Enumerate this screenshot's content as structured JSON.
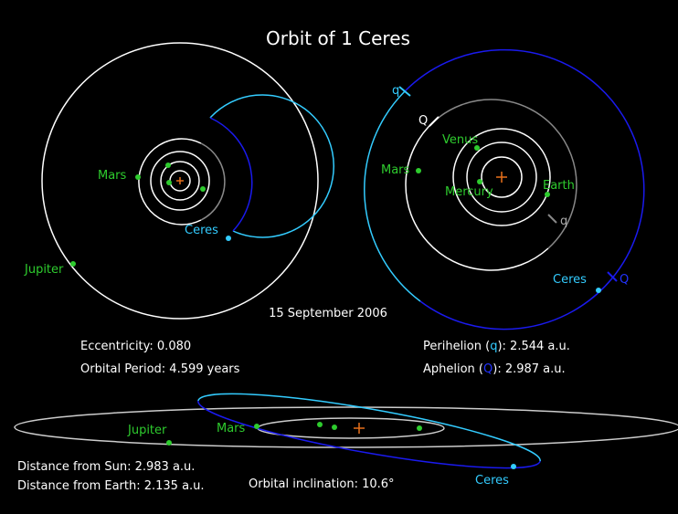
{
  "title": "Orbit of 1 Ceres",
  "outer_view": {
    "mars": "Mars",
    "ceres": "Ceres",
    "jupiter": "Jupiter"
  },
  "inner_view": {
    "q_ceres": "q",
    "q_mars": "Q",
    "venus": "Venus",
    "mars": "Mars",
    "mercury": "Mercury",
    "earth": "Earth",
    "q_mars_peri": "q",
    "ceres": "Ceres",
    "Q_ceres": "Q"
  },
  "date": "15 September 2006",
  "elements": {
    "eccentricity": "Eccentricity: 0.080",
    "period": "Orbital Period: 4.599 years",
    "perihelion": {
      "before": "Perihelion (",
      "symbol": "q",
      "after": "): 2.544 a.u."
    },
    "aphelion": {
      "before": "Aphelion (",
      "symbol": "Q",
      "after": "): 2.987 a.u."
    }
  },
  "side_view": {
    "jupiter": "Jupiter",
    "mars": "Mars",
    "ceres": "Ceres",
    "distance_sun": "Distance from Sun: 2.983 a.u.",
    "distance_earth": "Distance from Earth: 2.135 a.u.",
    "inclination": "Orbital inclination: 10.6°"
  }
}
